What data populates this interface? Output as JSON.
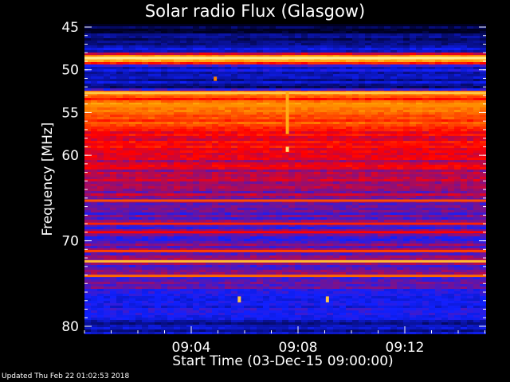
{
  "chart_data": {
    "type": "heatmap",
    "title": "Solar radio Flux (Glasgow)",
    "ylabel": "Frequency [MHz]",
    "xlabel": "Start Time (03-Dec-15 09:00:00)",
    "x_unit": "minutes after 09:00:00",
    "xlim": [
      0,
      15.2
    ],
    "x_ticks": [
      {
        "value": 4,
        "label": "09:04"
      },
      {
        "value": 8,
        "label": "09:08"
      },
      {
        "value": 12,
        "label": "09:12"
      }
    ],
    "y_unit": "MHz",
    "ylim": [
      45,
      80
    ],
    "y_reversed": true,
    "y_ticks": [
      {
        "value": 45,
        "label": "45"
      },
      {
        "value": 50,
        "label": "50"
      },
      {
        "value": 55,
        "label": "55"
      },
      {
        "value": 60,
        "label": "60"
      },
      {
        "value": 70,
        "label": "70"
      },
      {
        "value": 80,
        "label": "80"
      }
    ],
    "colormap": [
      "#000022",
      "#1020ff",
      "#ff0000",
      "#ffa000",
      "#ffffaa"
    ],
    "intensity_profile_by_frequency": [
      {
        "freq": 45.5,
        "level": 0.02
      },
      {
        "freq": 46.0,
        "level": 0.1
      },
      {
        "freq": 47.0,
        "level": 0.12
      },
      {
        "freq": 47.8,
        "level": 0.18
      },
      {
        "freq": 48.6,
        "level": 0.9
      },
      {
        "freq": 49.1,
        "level": 0.65
      },
      {
        "freq": 49.6,
        "level": 0.22
      },
      {
        "freq": 50.5,
        "level": 0.18
      },
      {
        "freq": 51.5,
        "level": 0.15
      },
      {
        "freq": 52.2,
        "level": 0.1
      },
      {
        "freq": 52.7,
        "level": 0.78
      },
      {
        "freq": 53.3,
        "level": 0.55
      },
      {
        "freq": 54.0,
        "level": 0.68
      },
      {
        "freq": 55.0,
        "level": 0.66
      },
      {
        "freq": 56.5,
        "level": 0.58
      },
      {
        "freq": 58.0,
        "level": 0.5
      },
      {
        "freq": 60.0,
        "level": 0.46
      },
      {
        "freq": 62.0,
        "level": 0.43
      },
      {
        "freq": 64.0,
        "level": 0.4
      },
      {
        "freq": 66.0,
        "level": 0.36
      },
      {
        "freq": 68.0,
        "level": 0.34
      },
      {
        "freq": 70.0,
        "level": 0.33
      },
      {
        "freq": 72.0,
        "level": 0.36
      },
      {
        "freq": 74.0,
        "level": 0.34
      },
      {
        "freq": 76.0,
        "level": 0.3
      },
      {
        "freq": 77.5,
        "level": 0.26
      },
      {
        "freq": 79.0,
        "level": 0.2
      },
      {
        "freq": 80.0,
        "level": 0.14
      }
    ],
    "bright_bands": [
      {
        "freq": 48.6,
        "level": 0.95
      },
      {
        "freq": 52.7,
        "level": 0.85
      },
      {
        "freq": 54.2,
        "level": 0.72
      },
      {
        "freq": 65.3,
        "level": 0.62
      },
      {
        "freq": 71.2,
        "level": 0.6
      },
      {
        "freq": 72.4,
        "level": 0.82
      },
      {
        "freq": 74.1,
        "level": 0.66
      },
      {
        "freq": 68.0,
        "level": 0.55
      },
      {
        "freq": 69.0,
        "level": 0.5
      }
    ],
    "bursts": [
      {
        "time": 7.6,
        "freq_start": 52.5,
        "freq_end": 57.5,
        "level": 0.78
      },
      {
        "time": 7.6,
        "freq_start": 59.0,
        "freq_end": 59.6,
        "level": 0.92
      },
      {
        "time": 5.8,
        "freq_start": 76.5,
        "freq_end": 77.2,
        "level": 0.85
      },
      {
        "time": 9.1,
        "freq_start": 76.5,
        "freq_end": 77.2,
        "level": 0.85
      },
      {
        "time": 4.9,
        "freq_start": 50.8,
        "freq_end": 51.3,
        "level": 0.7
      }
    ]
  },
  "footer": {
    "updated": "Updated Thu Feb 22 01:02:53 2018"
  }
}
